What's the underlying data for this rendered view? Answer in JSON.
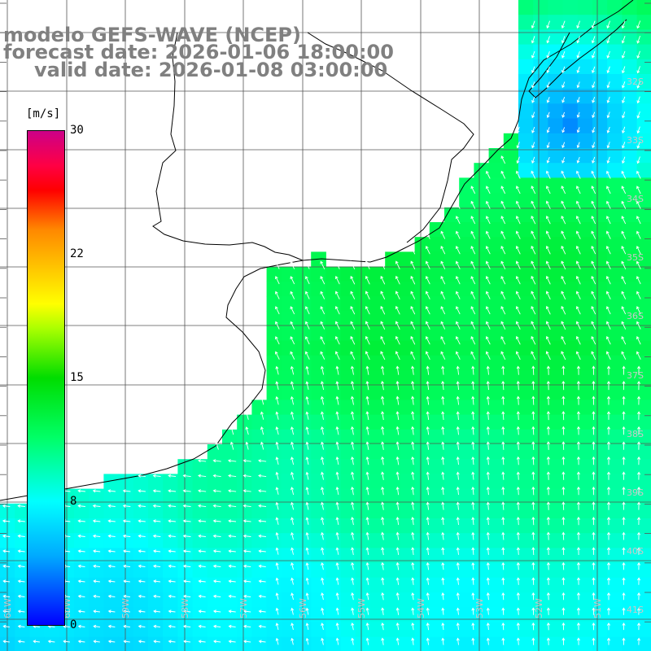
{
  "header": {
    "model": "modelo GEFS-WAVE (NCEP)",
    "forecast": "forecast date: 2026-01-06 18:00:00",
    "valid": "valid date: 2026-01-08 03:00:00"
  },
  "colorbar": {
    "unit": "[m/s]",
    "min": 0,
    "max": 30,
    "tick_labels": [
      "30",
      "22",
      "15",
      "8",
      "0"
    ],
    "tick_values": [
      30,
      22,
      15,
      8,
      0
    ]
  },
  "grid_labels": {
    "lat": [
      "32S",
      "33S",
      "34S",
      "35S",
      "36S",
      "37S",
      "38S",
      "39S",
      "40S",
      "41S"
    ],
    "lon": [
      "61W",
      "60W",
      "59W",
      "58W",
      "57W",
      "56W",
      "55W",
      "54W",
      "53W",
      "52W",
      "51W"
    ]
  },
  "colors": {
    "land": "#ffffff",
    "grid": "#555555",
    "coast": "#000000",
    "arrow": "#ffffff"
  },
  "chart_data": {
    "type": "heatmap",
    "field": "wind speed with direction arrows",
    "value_unit": "m/s",
    "value_range": [
      0,
      30
    ],
    "regimes": [
      {
        "area": "northeast offshore",
        "speed_ms": 4,
        "direction": "south-southwest"
      },
      {
        "area": "central estuary and shelf",
        "speed_ms": 12,
        "direction": "north-northwest"
      },
      {
        "area": "southwest near coast",
        "speed_ms": 7,
        "direction": "west"
      },
      {
        "area": "south open ocean",
        "speed_ms": 10,
        "direction": "north"
      }
    ]
  }
}
